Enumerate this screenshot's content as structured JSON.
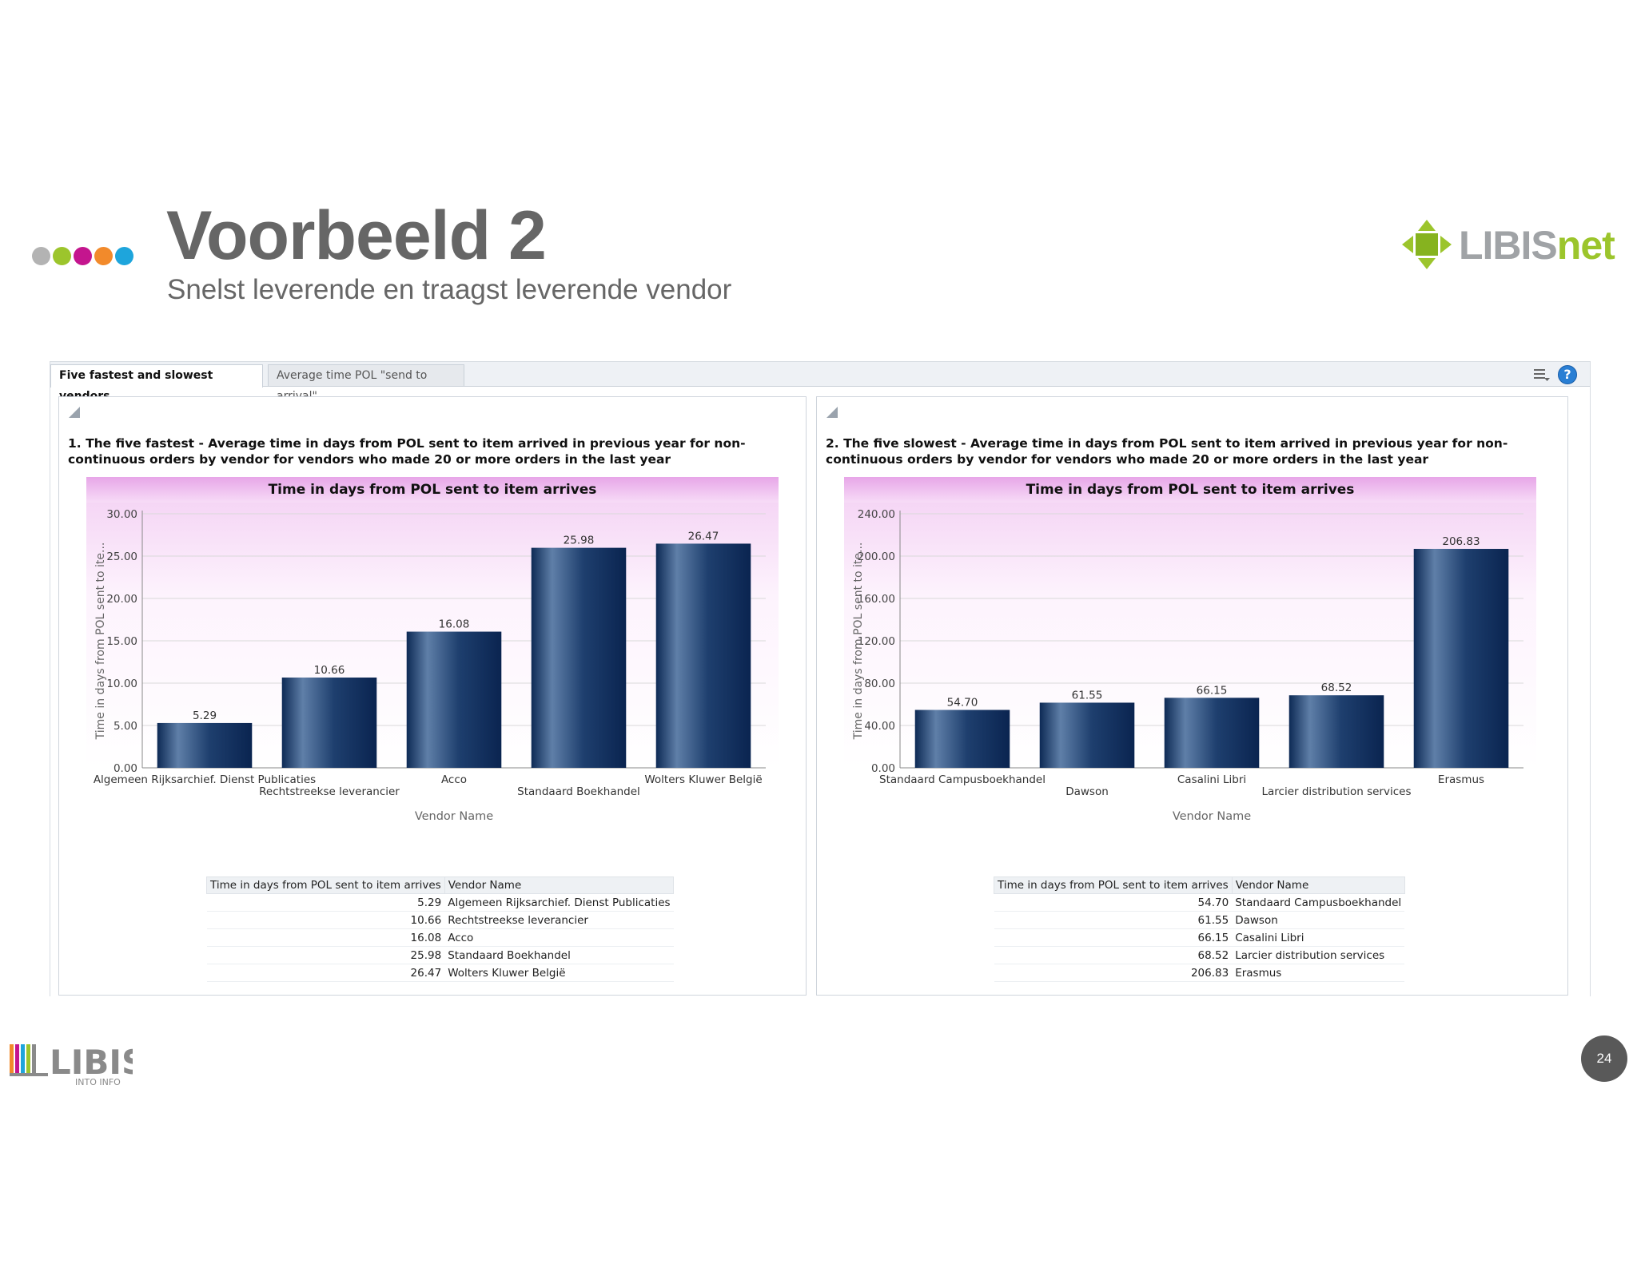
{
  "slide": {
    "title": "Voorbeeld 2",
    "subtitle": "Snelst leverende en traagst leverende vendor",
    "dot_colors": [
      "#b3b3b3",
      "#9cc52c",
      "#c4158e",
      "#f28a2b",
      "#1ea5dc"
    ],
    "logo_top": {
      "part1": "LIBIS",
      "part2": "net",
      "color_gray": "#a0a3a6",
      "color_green": "#9cc52c"
    },
    "logo_bottom": {
      "name": "LIBIS",
      "tagline": "INTO INFO"
    },
    "page_number": "24"
  },
  "dashboard": {
    "tabs": [
      {
        "label": "Five fastest and slowest vendors",
        "active": true
      },
      {
        "label": "Average time POL \"send to arrival\"",
        "active": false
      }
    ],
    "icons": [
      "menu-icon",
      "help-icon"
    ],
    "help_glyph": "?"
  },
  "panels": [
    {
      "heading": "1. The five fastest - Average time in days from POL sent to item arrived in previous year for non-continuous orders by vendor for vendors who made 20 or more orders in the last year",
      "table": {
        "headers": [
          "Time in days from POL sent to item arrives",
          "Vendor Name"
        ],
        "rows": [
          [
            "5.29",
            "Algemeen Rijksarchief. Dienst Publicaties"
          ],
          [
            "10.66",
            "Rechtstreekse leverancier"
          ],
          [
            "16.08",
            "Acco"
          ],
          [
            "25.98",
            "Standaard Boekhandel"
          ],
          [
            "26.47",
            "Wolters Kluwer België"
          ]
        ]
      }
    },
    {
      "heading": "2. The five slowest - Average time in days from POL sent to item arrived in previous year for non-continuous orders by vendor for vendors who made 20 or more orders in the last year",
      "table": {
        "headers": [
          "Time in days from POL sent to item arrives",
          "Vendor Name"
        ],
        "rows": [
          [
            "54.70",
            "Standaard Campusboekhandel"
          ],
          [
            "61.55",
            "Dawson"
          ],
          [
            "66.15",
            "Casalini Libri"
          ],
          [
            "68.52",
            "Larcier distribution services"
          ],
          [
            "206.83",
            "Erasmus"
          ]
        ]
      }
    }
  ],
  "chart_data": [
    {
      "type": "bar",
      "title": "Time in days from POL sent to item arrives",
      "xlabel": "Vendor Name",
      "ylabel": "Time in days from POL sent to ite...",
      "categories": [
        "Algemeen Rijksarchief. Dienst Publicaties",
        "Rechtstreekse leverancier",
        "Acco",
        "Standaard Boekhandel",
        "Wolters Kluwer België"
      ],
      "values": [
        5.29,
        10.66,
        16.08,
        25.98,
        26.47
      ],
      "value_labels": [
        "5.29",
        "10.66",
        "16.08",
        "25.98",
        "26.47"
      ],
      "ylim": [
        0,
        30
      ],
      "yticks": [
        0,
        5,
        10,
        15,
        20,
        25,
        30
      ],
      "ytick_labels": [
        "0.00",
        "5.00",
        "10.00",
        "15.00",
        "20.00",
        "25.00",
        "30.00"
      ],
      "grid": true,
      "legend": "none",
      "bar_color": "#1e3f6e"
    },
    {
      "type": "bar",
      "title": "Time in days from POL sent to item arrives",
      "xlabel": "Vendor Name",
      "ylabel": "Time in days from POL sent to ite...",
      "categories": [
        "Standaard Campusboekhandel",
        "Dawson",
        "Casalini Libri",
        "Larcier distribution services",
        "Erasmus"
      ],
      "values": [
        54.7,
        61.55,
        66.15,
        68.52,
        206.83
      ],
      "value_labels": [
        "54.70",
        "61.55",
        "66.15",
        "68.52",
        "206.83"
      ],
      "ylim": [
        0,
        240
      ],
      "yticks": [
        0,
        40,
        80,
        120,
        160,
        200,
        240
      ],
      "ytick_labels": [
        "0.00",
        "40.00",
        "80.00",
        "120.00",
        "160.00",
        "200.00",
        "240.00"
      ],
      "grid": true,
      "legend": "none",
      "bar_color": "#1e3f6e"
    }
  ]
}
